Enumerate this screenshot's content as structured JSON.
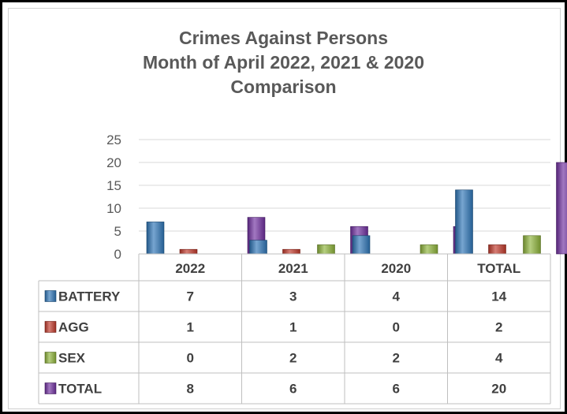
{
  "chart_data": {
    "type": "bar",
    "title": [
      "Crimes Against Persons",
      "Month of April 2022, 2021 & 2020",
      "Comparison"
    ],
    "categories": [
      "2022",
      "2021",
      "2020",
      "TOTAL"
    ],
    "series": [
      {
        "name": "BATTERY",
        "values": [
          7,
          3,
          4,
          14
        ],
        "color": "#2e75b6"
      },
      {
        "name": "AGG",
        "values": [
          1,
          1,
          0,
          2
        ],
        "color": "#c0392b"
      },
      {
        "name": "SEX",
        "values": [
          0,
          2,
          2,
          4
        ],
        "color": "#8db33a"
      },
      {
        "name": "TOTAL",
        "values": [
          8,
          6,
          6,
          20
        ],
        "color": "#7030a0"
      }
    ],
    "ylim": [
      0,
      25
    ],
    "yticks": [
      0,
      5,
      10,
      15,
      20,
      25
    ],
    "grid": true,
    "legend": "data-table-left",
    "data_table": true
  }
}
